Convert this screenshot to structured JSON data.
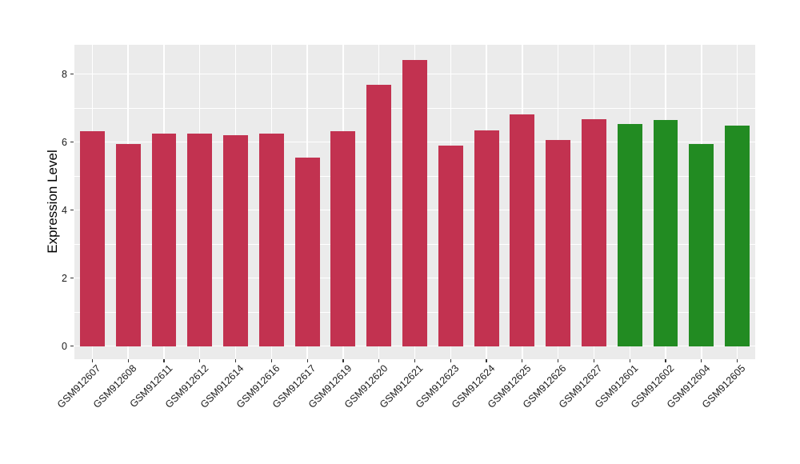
{
  "chart_data": {
    "type": "bar",
    "title": "",
    "xlabel": "",
    "ylabel": "Expression Level",
    "yticks": [
      0,
      2,
      4,
      6,
      8
    ],
    "ylim": [
      0,
      8.85
    ],
    "grid": true,
    "legend_position": "none",
    "categories": [
      "GSM912607",
      "GSM912608",
      "GSM912611",
      "GSM912612",
      "GSM912614",
      "GSM912616",
      "GSM912617",
      "GSM912619",
      "GSM912620",
      "GSM912621",
      "GSM912623",
      "GSM912624",
      "GSM912625",
      "GSM912626",
      "GSM912627",
      "GSM912601",
      "GSM912602",
      "GSM912604",
      "GSM912605"
    ],
    "values": [
      6.32,
      5.93,
      6.25,
      6.25,
      6.19,
      6.25,
      5.53,
      6.32,
      7.68,
      8.42,
      5.89,
      6.33,
      6.82,
      6.07,
      6.66,
      6.53,
      6.65,
      5.94,
      6.49
    ],
    "bar_groups": [
      "red",
      "red",
      "red",
      "red",
      "red",
      "red",
      "red",
      "red",
      "red",
      "red",
      "red",
      "red",
      "red",
      "red",
      "red",
      "green",
      "green",
      "green",
      "green"
    ],
    "palette": {
      "red": "#C23250",
      "green": "#228B22"
    },
    "panel_background": "#EBEBEB",
    "grid_color": "#FFFFFF"
  }
}
